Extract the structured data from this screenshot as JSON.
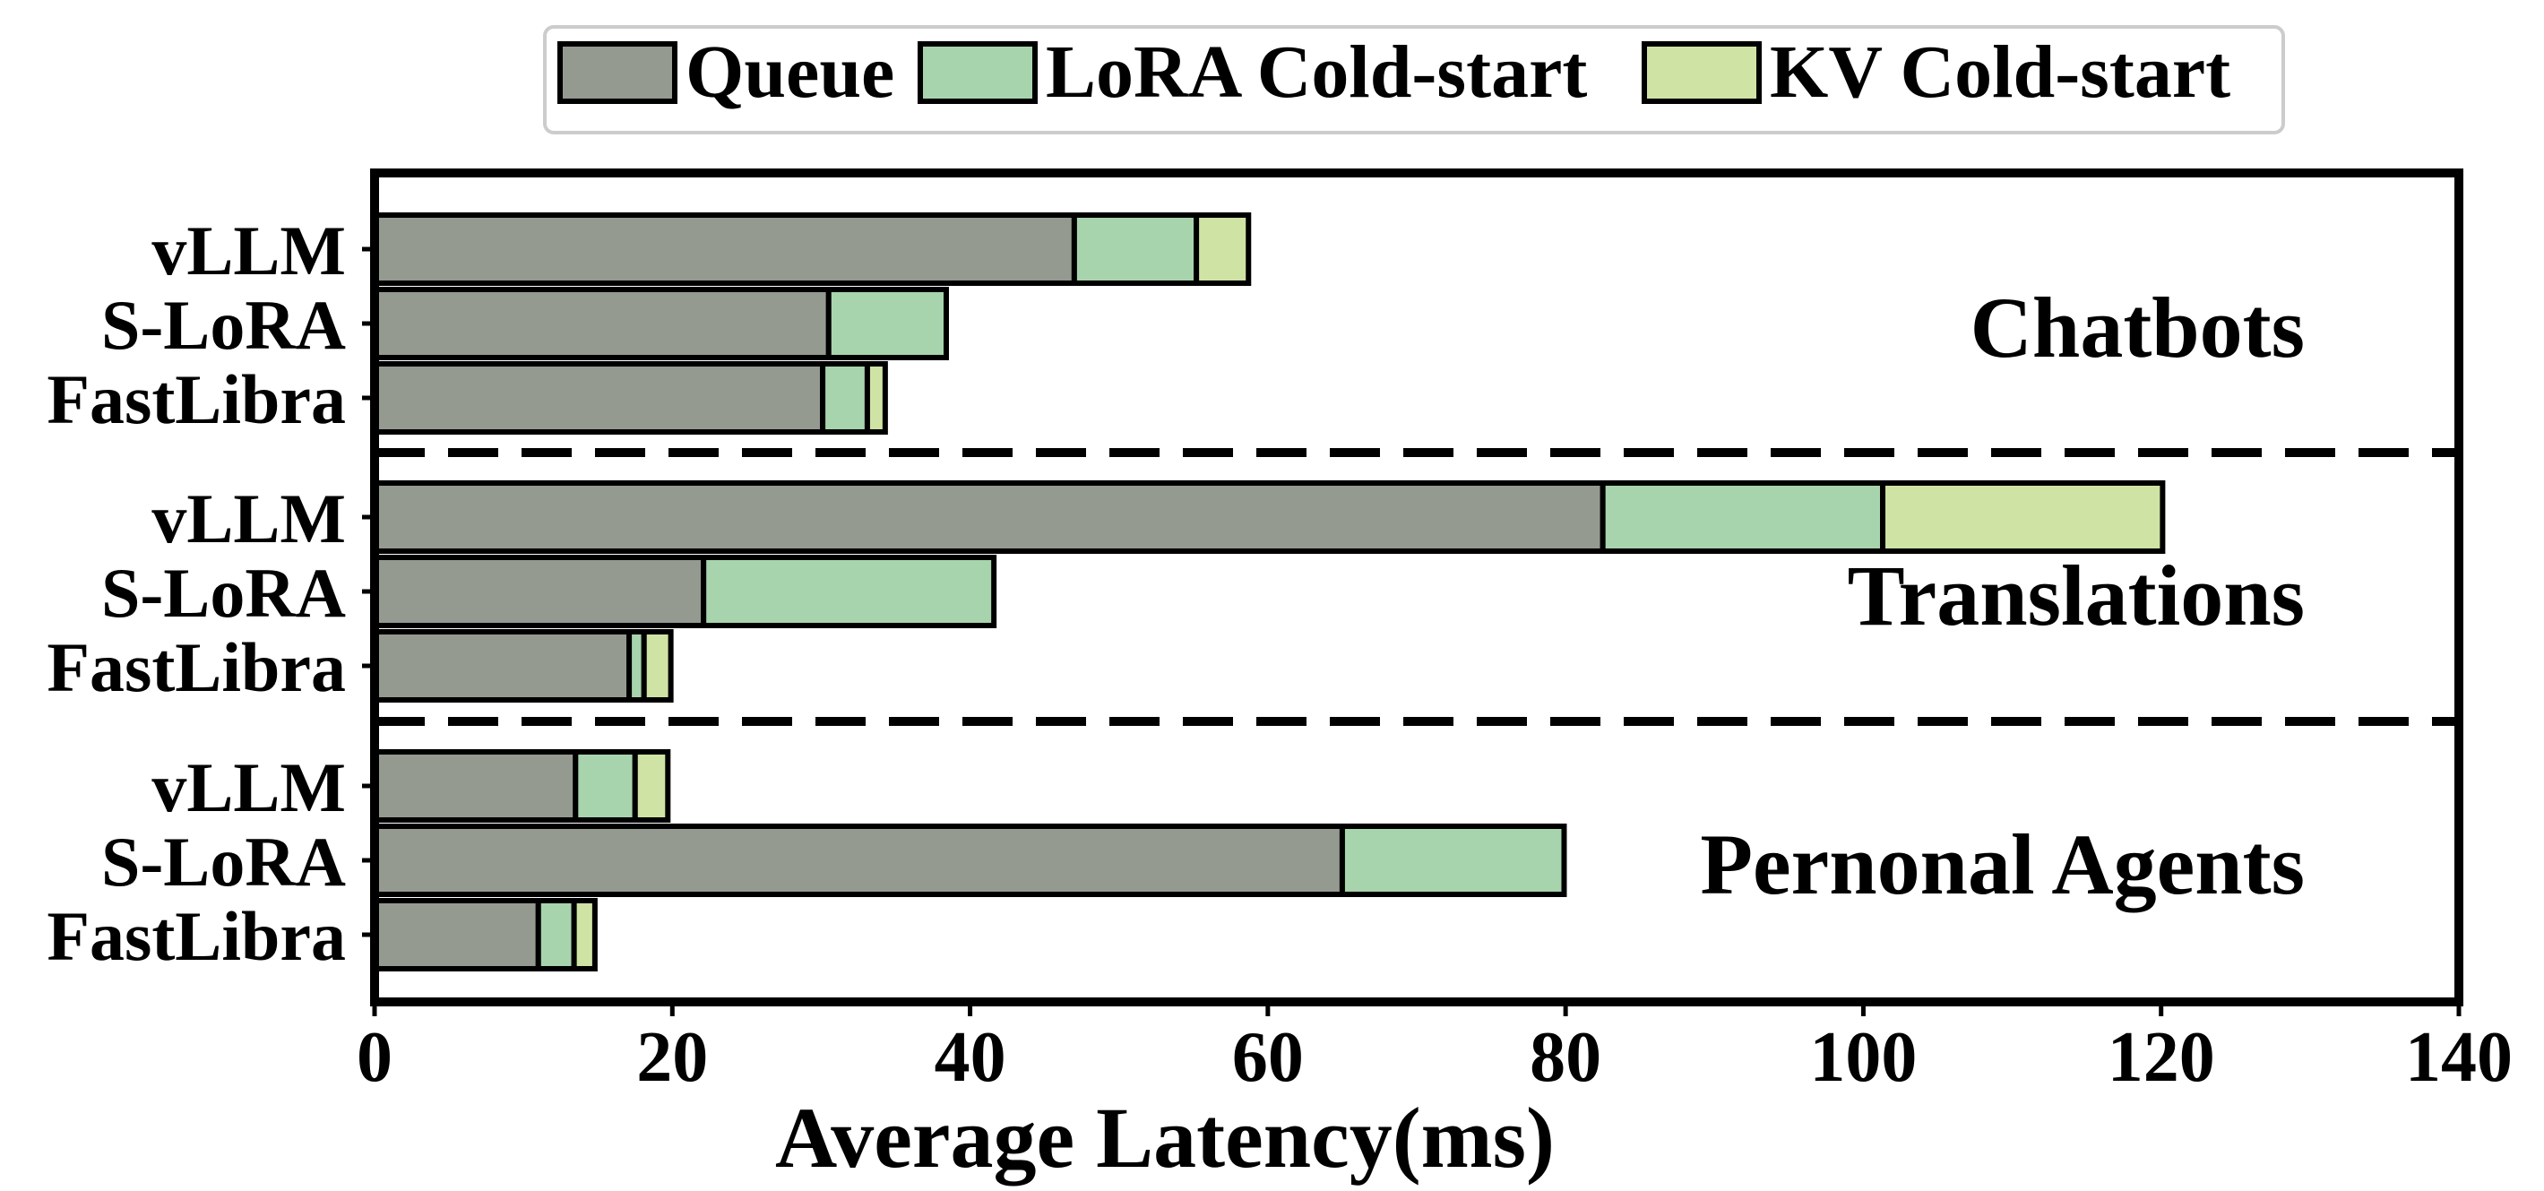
{
  "chart_data": {
    "type": "bar",
    "orientation": "horizontal",
    "stacked": true,
    "xlabel": "Average Latency(ms)",
    "ylabel": "",
    "xlim": [
      0,
      140
    ],
    "xticks": [
      0,
      20,
      40,
      60,
      80,
      100,
      120,
      140
    ],
    "grid": false,
    "legend": {
      "placement": "top-center",
      "entries": [
        "Queue",
        "LoRA Cold-start",
        "KV Cold-start"
      ]
    },
    "series_colors": {
      "Queue": "#949a90",
      "LoRA Cold-start": "#a8d4ad",
      "KV Cold-start": "#cfe3a4"
    },
    "groups": [
      {
        "name": "Chatbots",
        "bars": [
          {
            "label": "vLLM",
            "segments": {
              "Queue": 47,
              "LoRA Cold-start": 8.2,
              "KV Cold-start": 3.5
            }
          },
          {
            "label": "S-LoRA",
            "segments": {
              "Queue": 30.5,
              "LoRA Cold-start": 7.9,
              "KV Cold-start": 0
            }
          },
          {
            "label": "FastLibra",
            "segments": {
              "Queue": 30.1,
              "LoRA Cold-start": 3.0,
              "KV Cold-start": 1.2
            }
          }
        ]
      },
      {
        "name": "Translations",
        "bars": [
          {
            "label": "vLLM",
            "segments": {
              "Queue": 82.5,
              "LoRA Cold-start": 18.8,
              "KV Cold-start": 18.8
            }
          },
          {
            "label": "S-LoRA",
            "segments": {
              "Queue": 22.1,
              "LoRA Cold-start": 19.5,
              "KV Cold-start": 0
            }
          },
          {
            "label": "FastLibra",
            "segments": {
              "Queue": 17.1,
              "LoRA Cold-start": 1.0,
              "KV Cold-start": 1.8
            }
          }
        ]
      },
      {
        "name": "Pernonal Agents",
        "bars": [
          {
            "label": "vLLM",
            "segments": {
              "Queue": 13.5,
              "LoRA Cold-start": 4.0,
              "KV Cold-start": 2.2
            }
          },
          {
            "label": "S-LoRA",
            "segments": {
              "Queue": 65.0,
              "LoRA Cold-start": 14.9,
              "KV Cold-start": 0
            }
          },
          {
            "label": "FastLibra",
            "segments": {
              "Queue": 11.0,
              "LoRA Cold-start": 2.4,
              "KV Cold-start": 1.4
            }
          }
        ]
      }
    ]
  }
}
